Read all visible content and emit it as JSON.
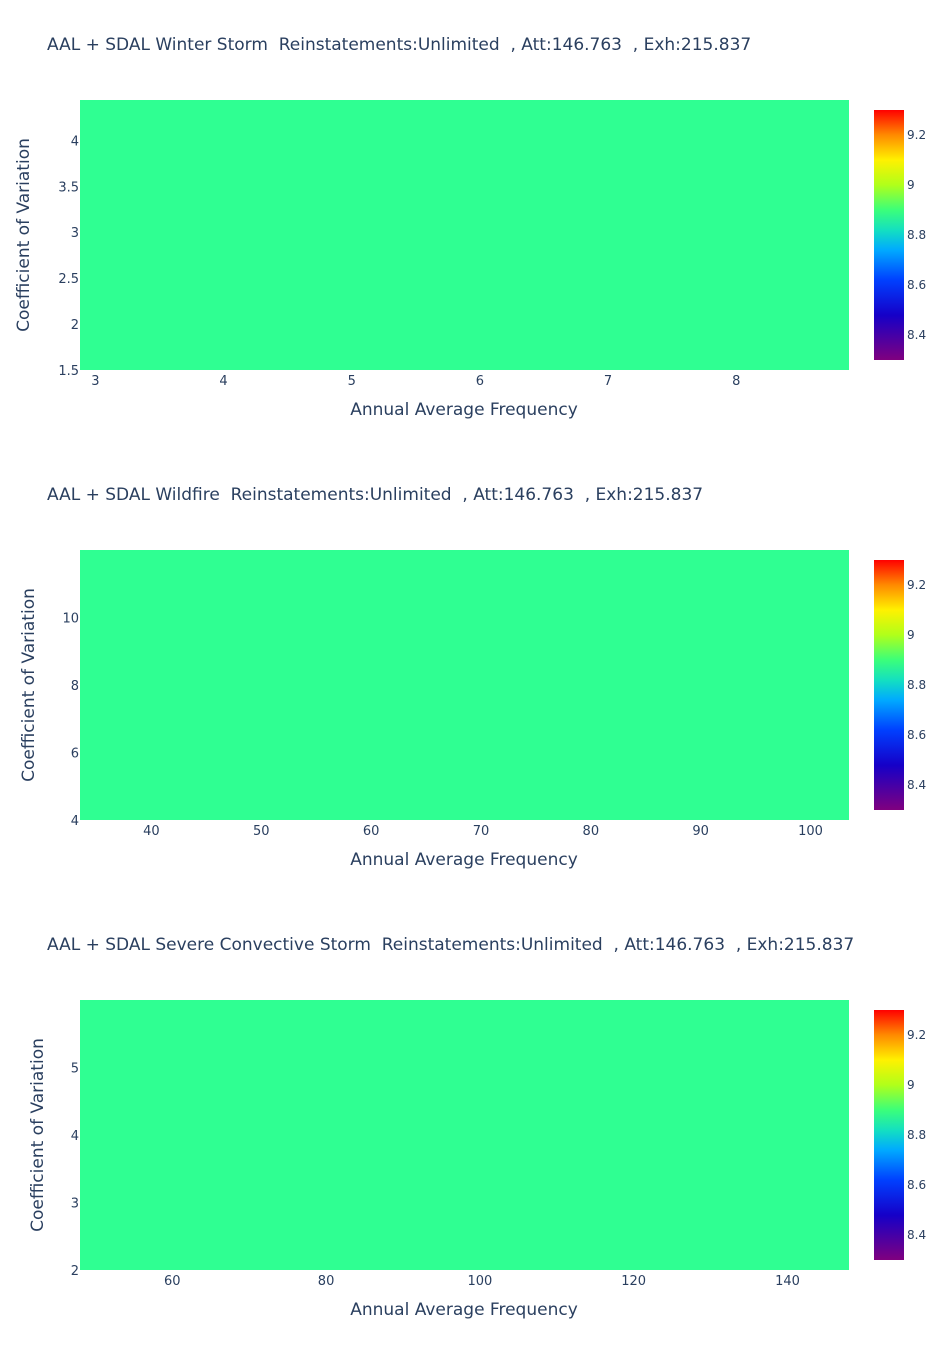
{
  "chart_data": [
    {
      "type": "heatmap",
      "title": "AAL + SDAL Winter Storm  Reinstatements:Unlimited  , Att:146.763  , Exh:215.837",
      "xlabel": "Annual Average Frequency",
      "ylabel": "Coefficient of Variation",
      "xlim": [
        2.88,
        8.88
      ],
      "ylim": [
        1.5,
        4.44
      ],
      "xticks": [
        3,
        4,
        5,
        6,
        7,
        8
      ],
      "yticks": [
        1.5,
        2,
        2.5,
        3,
        3.5,
        4
      ],
      "x": [
        2.88,
        8.88
      ],
      "y": [
        1.5,
        4.44
      ],
      "z": [
        [
          8.82
        ]
      ],
      "colorbar": {
        "colorscale": "rainbow",
        "range": [
          8.3,
          9.3
        ],
        "ticks": [
          8.4,
          8.6,
          8.8,
          9,
          9.2
        ]
      },
      "cell_color": "#2fff92"
    },
    {
      "type": "heatmap",
      "title": "AAL + SDAL Wildfire  Reinstatements:Unlimited  , Att:146.763  , Exh:215.837",
      "xlabel": "Annual Average Frequency",
      "ylabel": "Coefficient of Variation",
      "xlim": [
        33.5,
        103.5
      ],
      "ylim": [
        4,
        12
      ],
      "xticks": [
        40,
        50,
        60,
        70,
        80,
        90,
        100
      ],
      "yticks": [
        4,
        6,
        8,
        10
      ],
      "x": [
        33.5,
        103.5
      ],
      "y": [
        4,
        12
      ],
      "z": [
        [
          8.82
        ]
      ],
      "colorbar": {
        "colorscale": "rainbow",
        "range": [
          8.3,
          9.3
        ],
        "ticks": [
          8.4,
          8.6,
          8.8,
          9,
          9.2
        ]
      },
      "cell_color": "#2fff92"
    },
    {
      "type": "heatmap",
      "title": "AAL + SDAL Severe Convective Storm  Reinstatements:Unlimited  , Att:146.763  , Exh:215.837",
      "xlabel": "Annual Average Frequency",
      "ylabel": "Coefficient of Variation",
      "xlim": [
        48,
        148
      ],
      "ylim": [
        2,
        6
      ],
      "xticks": [
        60,
        80,
        100,
        120,
        140
      ],
      "yticks": [
        2,
        3,
        4,
        5
      ],
      "x": [
        48,
        148
      ],
      "y": [
        2,
        6
      ],
      "z": [
        [
          8.82
        ]
      ],
      "colorbar": {
        "colorscale": "rainbow",
        "range": [
          8.3,
          9.3
        ],
        "ticks": [
          8.4,
          8.6,
          8.8,
          9,
          9.2
        ]
      },
      "cell_color": "#2fff92"
    }
  ]
}
